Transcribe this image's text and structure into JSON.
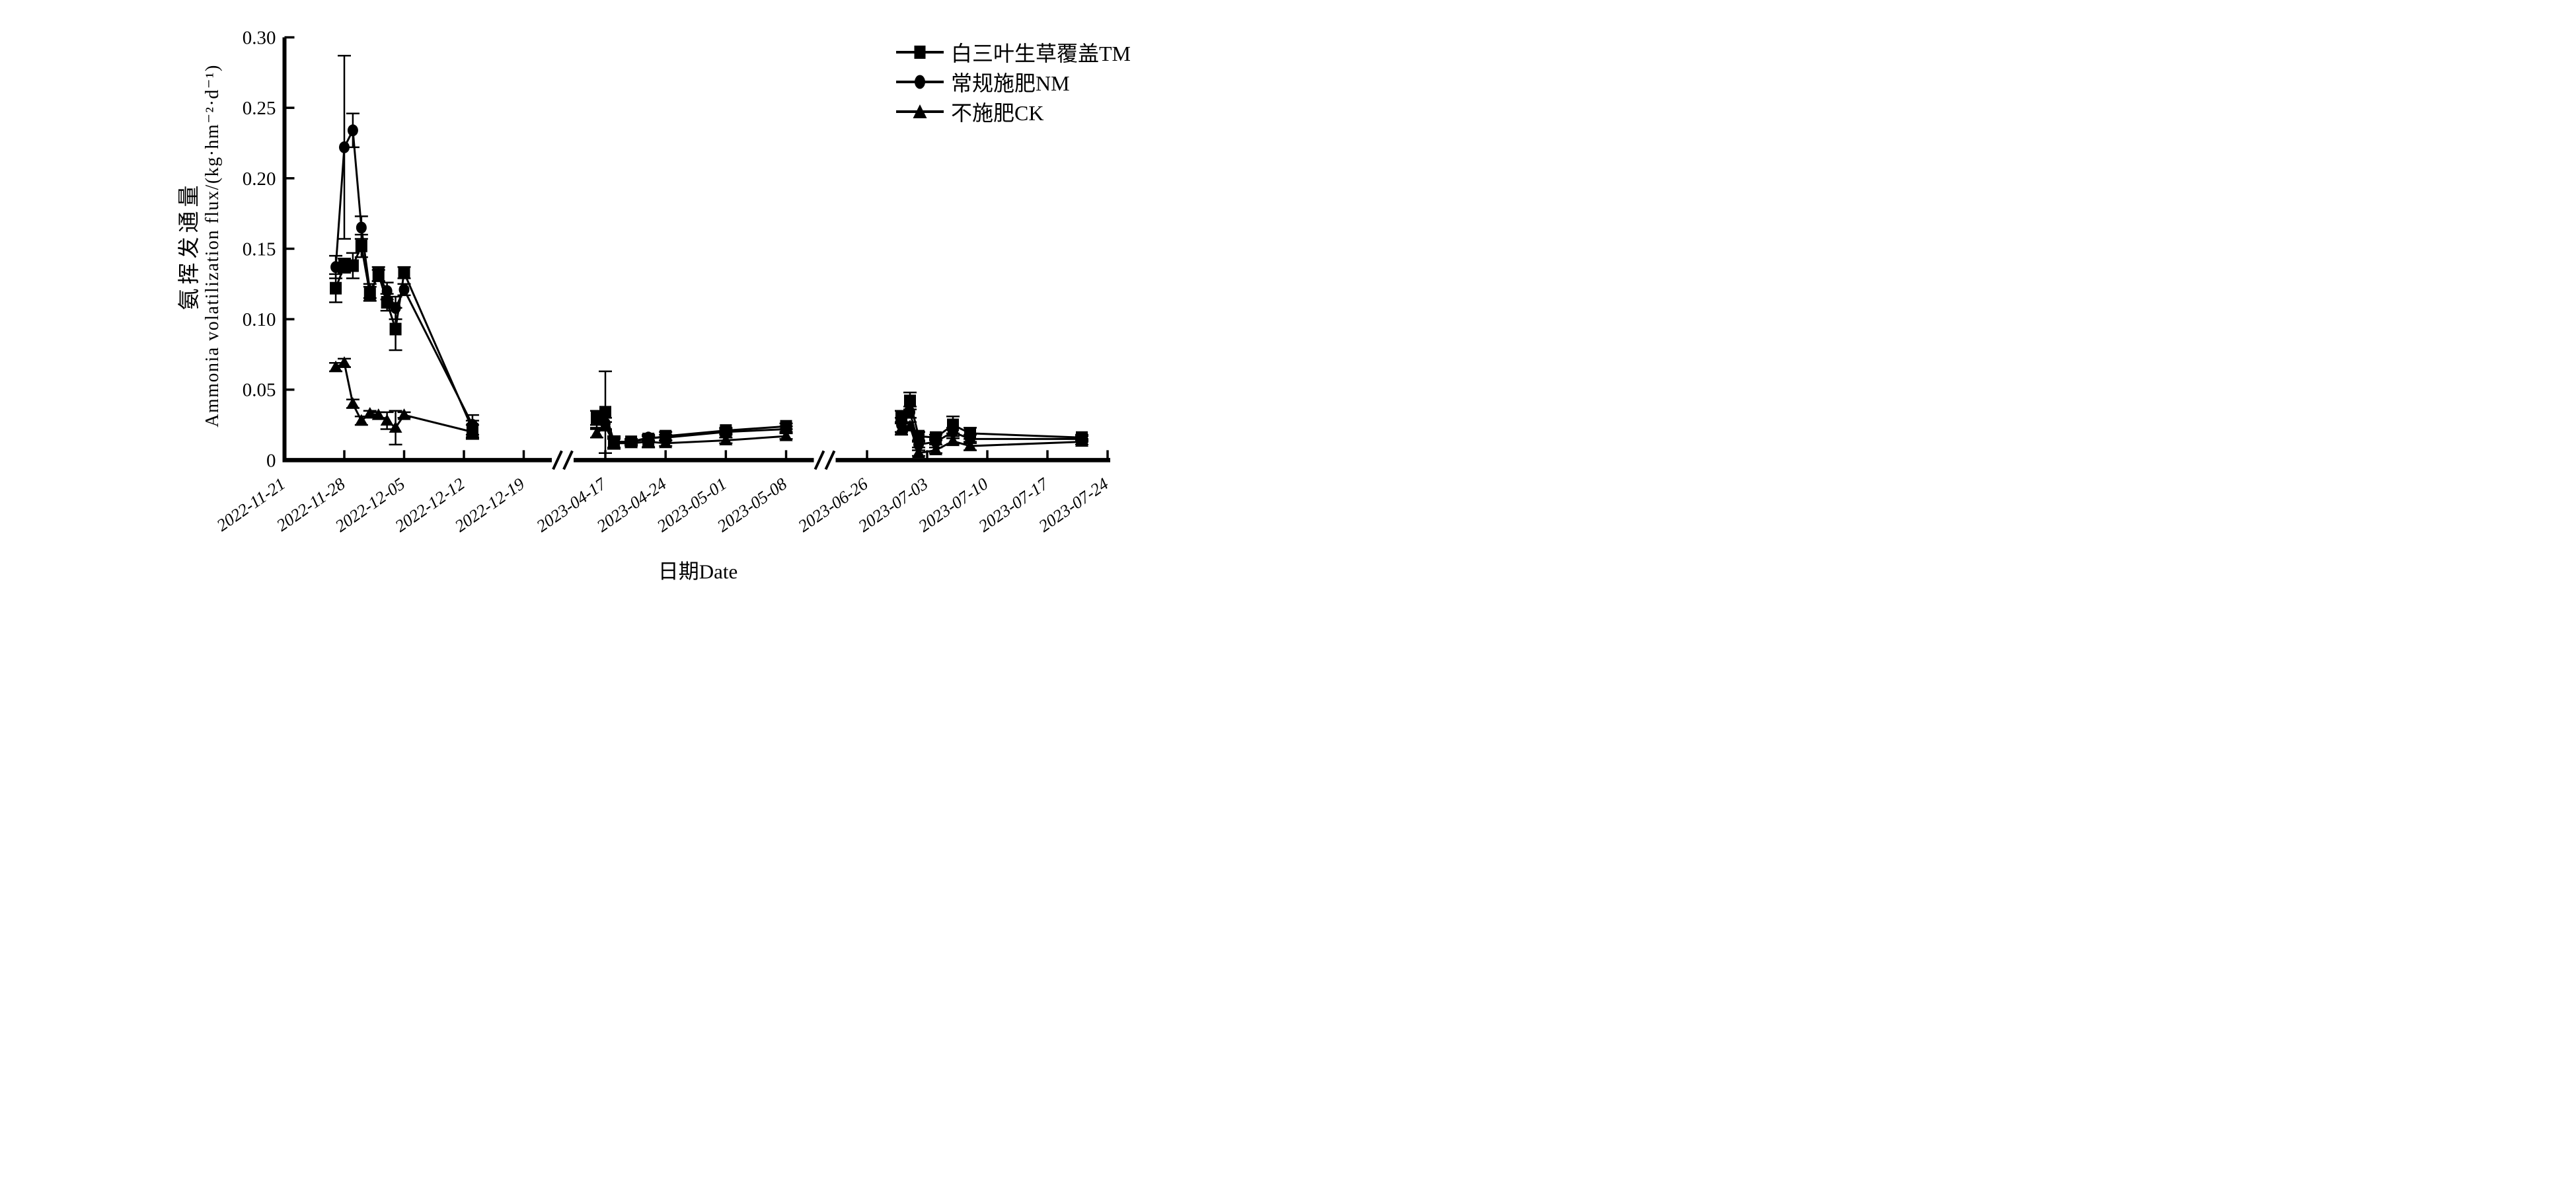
{
  "figure": {
    "background": "#ffffff",
    "ink": "#000000"
  },
  "chart_data": {
    "type": "line",
    "title": "",
    "xlabel": "日期Date",
    "ylabel_cn": "氨挥发通量",
    "ylabel_en": "Ammonia volatilization flux/(kg·hm⁻²·d⁻¹)",
    "ylim": [
      0,
      0.3
    ],
    "y_tick_labels": [
      "0",
      "0.05",
      "0.10",
      "0.15",
      "0.20",
      "0.25",
      "0.30"
    ],
    "x_segments": [
      {
        "ticks": [
          "2022-11-21",
          "2022-11-28",
          "2022-12-05",
          "2022-12-12",
          "2022-12-19"
        ]
      },
      {
        "ticks": [
          "2023-04-17",
          "2023-04-24",
          "2023-05-01",
          "2023-05-08"
        ]
      },
      {
        "ticks": [
          "2023-06-26",
          "2023-07-03",
          "2023-07-10",
          "2023-07-17",
          "2023-07-24"
        ]
      }
    ],
    "axis_breaks": true,
    "grid": false,
    "legend_position": "top-right",
    "marker_color": "#000000",
    "series": [
      {
        "name": "白三叶生草覆盖TM",
        "marker": "square",
        "points": [
          [
            "2022-11-27",
            0.122,
            0.01
          ],
          [
            "2022-11-28",
            0.138,
            0.005
          ],
          [
            "2022-11-29",
            0.138,
            0.009
          ],
          [
            "2022-11-30",
            0.152,
            0.008
          ],
          [
            "2022-12-01",
            0.118,
            0.005
          ],
          [
            "2022-12-02",
            0.132,
            0.005
          ],
          [
            "2022-12-03",
            0.112,
            0.006
          ],
          [
            "2022-12-04",
            0.093,
            0.015
          ],
          [
            "2022-12-05",
            0.133,
            0.004
          ],
          [
            "2022-12-13",
            0.022,
            0.006
          ],
          [
            "2023-04-16",
            0.03,
            0.005
          ],
          [
            "2023-04-17",
            0.034,
            0.029
          ],
          [
            "2023-04-18",
            0.013,
            0.004
          ],
          [
            "2023-04-20",
            0.013,
            0.002
          ],
          [
            "2023-04-22",
            0.015,
            0.002
          ],
          [
            "2023-04-24",
            0.017,
            0.003
          ],
          [
            "2023-05-01",
            0.021,
            0.002
          ],
          [
            "2023-05-08",
            0.024,
            0.002
          ],
          [
            "2023-06-30",
            0.031,
            0.004
          ],
          [
            "2023-07-01",
            0.042,
            0.006
          ],
          [
            "2023-07-02",
            0.017,
            0.003
          ],
          [
            "2023-07-04",
            0.016,
            0.002
          ],
          [
            "2023-07-06",
            0.025,
            0.006
          ],
          [
            "2023-07-08",
            0.019,
            0.004
          ],
          [
            "2023-07-21",
            0.016,
            0.002
          ]
        ]
      },
      {
        "name": "常规施肥NM",
        "marker": "circle",
        "points": [
          [
            "2022-11-27",
            0.137,
            0.008
          ],
          [
            "2022-11-28",
            0.222,
            0.065
          ],
          [
            "2022-11-29",
            0.234,
            0.012
          ],
          [
            "2022-11-30",
            0.165,
            0.008
          ],
          [
            "2022-12-01",
            0.12,
            0.005
          ],
          [
            "2022-12-02",
            0.131,
            0.004
          ],
          [
            "2022-12-03",
            0.12,
            0.006
          ],
          [
            "2022-12-04",
            0.108,
            0.008
          ],
          [
            "2022-12-05",
            0.121,
            0.004
          ],
          [
            "2022-12-13",
            0.025,
            0.007
          ],
          [
            "2023-04-16",
            0.029,
            0.006
          ],
          [
            "2023-04-17",
            0.026,
            0.004
          ],
          [
            "2023-04-18",
            0.012,
            0.003
          ],
          [
            "2023-04-20",
            0.013,
            0.002
          ],
          [
            "2023-04-22",
            0.016,
            0.002
          ],
          [
            "2023-04-24",
            0.016,
            0.002
          ],
          [
            "2023-05-01",
            0.02,
            0.002
          ],
          [
            "2023-05-08",
            0.022,
            0.002
          ],
          [
            "2023-06-30",
            0.025,
            0.005
          ],
          [
            "2023-07-01",
            0.034,
            0.004
          ],
          [
            "2023-07-02",
            0.011,
            0.002
          ],
          [
            "2023-07-04",
            0.013,
            0.002
          ],
          [
            "2023-07-06",
            0.02,
            0.003
          ],
          [
            "2023-07-08",
            0.015,
            0.003
          ],
          [
            "2023-07-21",
            0.015,
            0.002
          ]
        ]
      },
      {
        "name": "不施肥CK",
        "marker": "triangle",
        "points": [
          [
            "2022-11-27",
            0.066,
            0.003
          ],
          [
            "2022-11-28",
            0.069,
            0.003
          ],
          [
            "2022-11-29",
            0.04,
            0.003
          ],
          [
            "2022-11-30",
            0.028,
            0.003
          ],
          [
            "2022-12-01",
            0.033,
            0.002
          ],
          [
            "2022-12-02",
            0.032,
            0.002
          ],
          [
            "2022-12-03",
            0.028,
            0.006
          ],
          [
            "2022-12-04",
            0.023,
            0.012
          ],
          [
            "2022-12-05",
            0.032,
            0.002
          ],
          [
            "2022-12-13",
            0.02,
            0.005
          ],
          [
            "2023-04-16",
            0.019,
            0.003
          ],
          [
            "2023-04-17",
            0.024,
            0.003
          ],
          [
            "2023-04-18",
            0.012,
            0.004
          ],
          [
            "2023-04-20",
            0.012,
            0.002
          ],
          [
            "2023-04-22",
            0.013,
            0.004
          ],
          [
            "2023-04-24",
            0.012,
            0.002
          ],
          [
            "2023-05-01",
            0.014,
            0.002
          ],
          [
            "2023-05-08",
            0.017,
            0.002
          ],
          [
            "2023-06-30",
            0.022,
            0.004
          ],
          [
            "2023-07-01",
            0.024,
            0.003
          ],
          [
            "2023-07-02",
            0.005,
            0.002
          ],
          [
            "2023-07-04",
            0.007,
            0.002
          ],
          [
            "2023-07-06",
            0.0135,
            0.002
          ],
          [
            "2023-07-08",
            0.01,
            0.003
          ],
          [
            "2023-07-21",
            0.013,
            0.002
          ]
        ]
      }
    ]
  }
}
